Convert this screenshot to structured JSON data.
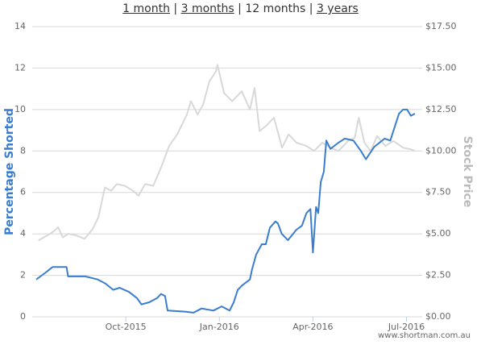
{
  "nav": {
    "links": [
      "1 month",
      "3 months",
      "12 months",
      "3 years"
    ],
    "separator": "|"
  },
  "chart_data": {
    "type": "line",
    "watermark": "www.shortman.com.au",
    "y_label": "Percentage Shorted",
    "y2_label": "Stock Price",
    "xlim": [
      0,
      12.4
    ],
    "xticks": [
      {
        "value": 3,
        "label": "Oct-2015"
      },
      {
        "value": 6,
        "label": "Jan-2016"
      },
      {
        "value": 9,
        "label": "Apr-2016"
      },
      {
        "value": 12,
        "label": "Jul-2016"
      }
    ],
    "ylim": [
      0,
      14
    ],
    "yticks": [
      0,
      2,
      4,
      6,
      8,
      10,
      12,
      14
    ],
    "y2lim": [
      0,
      17.5
    ],
    "y2ticks": [
      {
        "value": 0,
        "label": "$0.00"
      },
      {
        "value": 2.5,
        "label": "$2.50"
      },
      {
        "value": 5,
        "label": "$5.00"
      },
      {
        "value": 7.5,
        "label": "$7.50"
      },
      {
        "value": 10,
        "label": "$10.00"
      },
      {
        "value": 12.5,
        "label": "$12.50"
      },
      {
        "value": 15,
        "label": "$15.00"
      },
      {
        "value": 17.5,
        "label": "$17.50"
      }
    ],
    "grid": true,
    "series": [
      {
        "name": "Stock Price",
        "color": "#d8d8d8",
        "axis": "y2",
        "x": [
          0.2,
          0.38,
          0.57,
          0.72,
          0.83,
          0.98,
          1.16,
          1.42,
          1.68,
          1.94,
          2.12,
          2.33,
          2.53,
          2.71,
          2.97,
          3.23,
          3.41,
          3.62,
          3.88,
          4.13,
          4.39,
          4.65,
          4.96,
          5.09,
          5.3,
          5.48,
          5.68,
          5.89,
          5.94,
          6.15,
          6.41,
          6.72,
          6.98,
          7.13,
          7.29,
          7.49,
          7.75,
          8.01,
          8.22,
          8.47,
          8.79,
          9.04,
          9.3,
          9.56,
          9.82,
          10.13,
          10.34,
          10.47,
          10.65,
          10.85,
          11.06,
          11.32,
          11.58,
          11.89,
          12.14,
          12.27
        ],
        "values": [
          4.6,
          4.8,
          5.0,
          5.2,
          5.4,
          4.8,
          5.0,
          4.9,
          4.7,
          5.3,
          6.0,
          7.8,
          7.6,
          8.0,
          7.9,
          7.6,
          7.3,
          8.0,
          7.9,
          9.0,
          10.3,
          11.0,
          12.2,
          13.0,
          12.2,
          12.8,
          14.2,
          14.8,
          15.2,
          13.5,
          13.0,
          13.6,
          12.5,
          13.8,
          11.2,
          11.5,
          12.0,
          10.2,
          11.0,
          10.5,
          10.3,
          10.0,
          10.5,
          10.2,
          10.0,
          10.6,
          10.8,
          12.0,
          10.5,
          10.0,
          10.9,
          10.3,
          10.6,
          10.2,
          10.1,
          10.0
        ]
      },
      {
        "name": "Percentage Shorted",
        "color": "#3a7dce",
        "axis": "y",
        "x": [
          0.13,
          0.4,
          0.65,
          1.1,
          1.15,
          1.7,
          2.1,
          2.35,
          2.6,
          2.8,
          3.1,
          3.36,
          3.5,
          3.75,
          4.0,
          4.13,
          4.26,
          4.34,
          4.9,
          5.17,
          5.43,
          5.81,
          6.07,
          6.33,
          6.46,
          6.59,
          6.72,
          6.98,
          7.05,
          7.18,
          7.36,
          7.49,
          7.62,
          7.8,
          7.88,
          8.0,
          8.2,
          8.47,
          8.65,
          8.79,
          8.92,
          9.0,
          9.1,
          9.17,
          9.25,
          9.35,
          9.43,
          9.56,
          9.82,
          10.02,
          10.3,
          10.54,
          10.7,
          10.97,
          11.3,
          11.48,
          11.63,
          11.76,
          11.89,
          12.02,
          12.14,
          12.27
        ],
        "values": [
          1.8,
          2.1,
          2.4,
          2.4,
          1.95,
          1.95,
          1.8,
          1.6,
          1.3,
          1.4,
          1.2,
          0.9,
          0.6,
          0.7,
          0.9,
          1.1,
          1.0,
          0.3,
          0.25,
          0.2,
          0.4,
          0.3,
          0.5,
          0.3,
          0.7,
          1.3,
          1.5,
          1.8,
          2.3,
          3.0,
          3.5,
          3.5,
          4.3,
          4.6,
          4.5,
          4.0,
          3.7,
          4.2,
          4.4,
          5.0,
          5.2,
          3.1,
          5.3,
          5.0,
          6.5,
          7.0,
          8.5,
          8.1,
          8.4,
          8.6,
          8.5,
          8.0,
          7.6,
          8.2,
          8.6,
          8.5,
          9.2,
          9.8,
          10.0,
          10.0,
          9.7,
          9.8
        ]
      }
    ]
  }
}
